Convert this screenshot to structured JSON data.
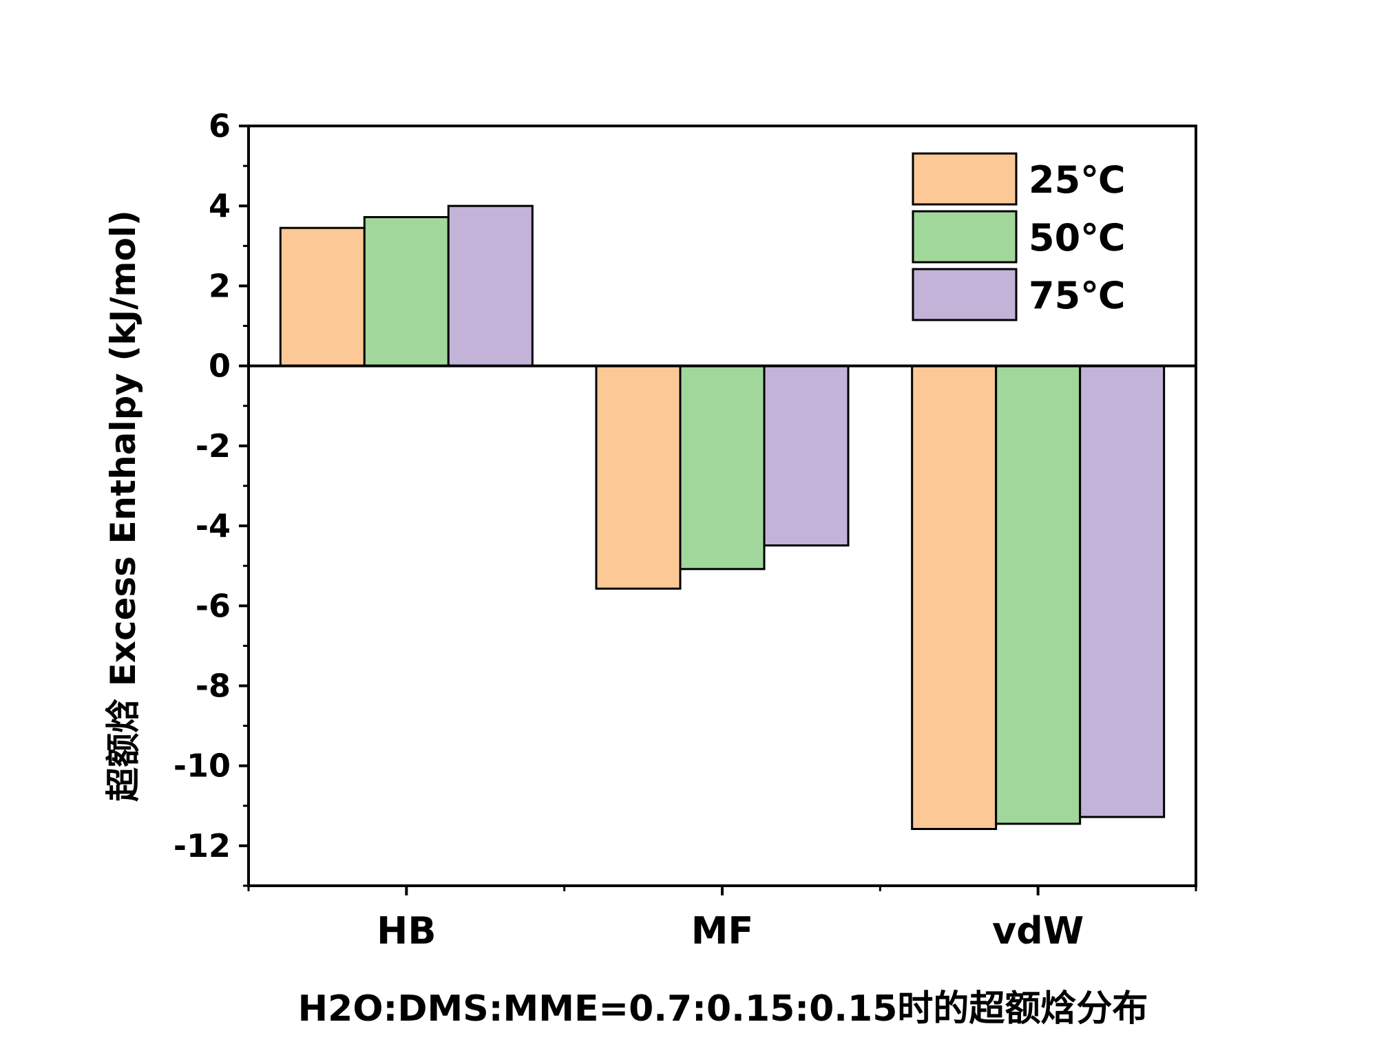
{
  "chart_data": {
    "type": "bar",
    "categories": [
      "HB",
      "MF",
      "vdW"
    ],
    "series": [
      {
        "name": "25℃",
        "color": "#fbc896",
        "values": [
          3.45,
          -5.57,
          -11.58
        ]
      },
      {
        "name": "50℃",
        "color": "#a2d79c",
        "values": [
          3.72,
          -5.08,
          -11.45
        ]
      },
      {
        "name": "75℃",
        "color": "#c3b3d8",
        "values": [
          4.0,
          -4.49,
          -11.28
        ]
      }
    ],
    "ylabel": "超额焓 Excess Enthalpy (kJ/mol)",
    "xlabel": "H2O:DMS:MME=0.7:0.15:0.15时的超额焓分布",
    "ylim": [
      -13,
      6
    ],
    "yticks": [
      6,
      4,
      2,
      0,
      -2,
      -4,
      -6,
      -8,
      -10,
      -12
    ],
    "ytick_labels": [
      "6",
      "4",
      "2",
      "0",
      "-2",
      "-4",
      "-6",
      "-8",
      "-10",
      "-12"
    ],
    "legend_position": "top-right",
    "grid": false
  }
}
